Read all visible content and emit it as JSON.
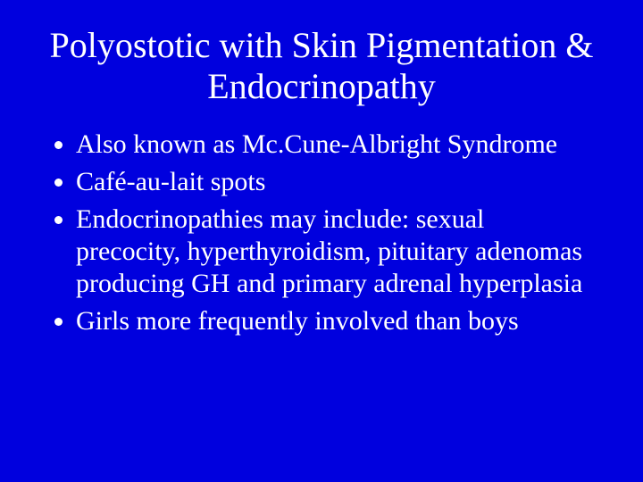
{
  "slide": {
    "background_color": "#0000de",
    "text_color": "#ffffff",
    "font_family": "Times New Roman",
    "title": "Polyostotic with Skin Pigmentation & Endocrinopathy",
    "title_fontsize": 40,
    "title_color": "#ffffff",
    "body_fontsize": 30,
    "body_color": "#ffffff",
    "bullets": [
      "Also known as Mc.Cune-Albright Syndrome",
      "Café-au-lait spots",
      "Endocrinopathies may include: sexual precocity, hyperthyroidism, pituitary adenomas producing GH and primary adrenal hyperplasia",
      "Girls more frequently involved than boys"
    ]
  }
}
